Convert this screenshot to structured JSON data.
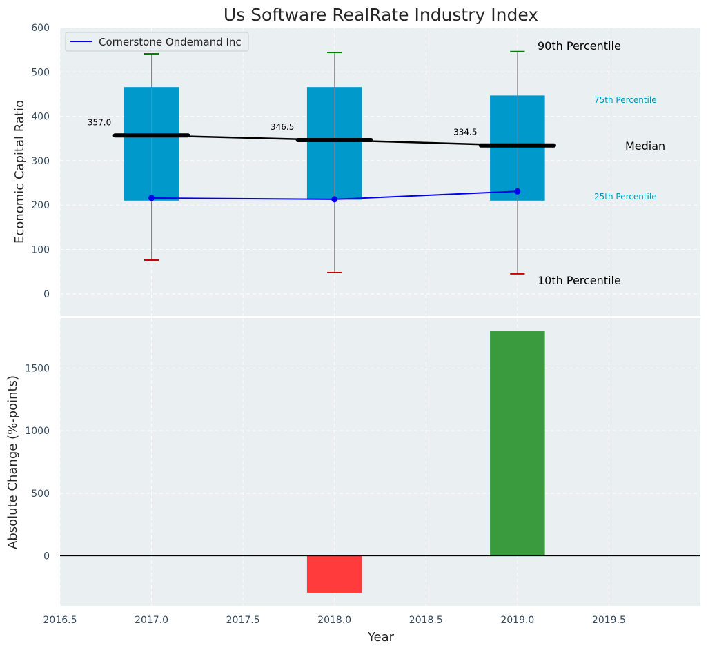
{
  "chart_data": [
    {
      "type": "box",
      "title": "Us Software RealRate Industry Index",
      "xlabel": "",
      "ylabel": "Economic Capital Ratio",
      "xlim": [
        2016.5,
        2020.0
      ],
      "ylim": [
        -50,
        600
      ],
      "yticks": [
        0,
        100,
        200,
        300,
        400,
        500,
        600
      ],
      "grid": true,
      "legend": {
        "position": "top-left",
        "entries": [
          "Cornerstone Ondemand Inc"
        ]
      },
      "colors": {
        "box": "#0099cc",
        "median": "#000000",
        "company": "#0000ee",
        "p90_cap": "#008000",
        "p10_cap": "#cc0000",
        "whisker": "#808080",
        "background": "#eaeff1",
        "percentile_label": "#0099bb"
      },
      "years": [
        2017,
        2018,
        2019
      ],
      "p10": [
        76,
        48,
        45
      ],
      "p25": [
        210,
        212,
        210
      ],
      "median": [
        357.0,
        346.5,
        334.5
      ],
      "p75": [
        466,
        466,
        447
      ],
      "p90": [
        541,
        544,
        546
      ],
      "median_labels": [
        "357.0",
        "346.5",
        "334.5"
      ],
      "series": [
        {
          "name": "Cornerstone Ondemand Inc",
          "values": [
            216,
            213,
            231
          ]
        }
      ],
      "annotations": {
        "p90": "90th Percentile",
        "p75": "75th Percentile",
        "median": "Median",
        "p25": "25th Percentile",
        "p10": "10th Percentile"
      }
    },
    {
      "type": "bar",
      "xlabel": "Year",
      "ylabel": "Absolute Change (%-points)",
      "xlim": [
        2016.5,
        2020.0
      ],
      "ylim": [
        -400,
        1900
      ],
      "yticks": [
        0,
        500,
        1000,
        1500
      ],
      "xticks": [
        "2016.5",
        "2017.0",
        "2017.5",
        "2018.0",
        "2018.5",
        "2019.0",
        "2019.5"
      ],
      "grid": true,
      "categories": [
        2018,
        2019
      ],
      "values": [
        -295,
        1795
      ],
      "colors": {
        "negative": "#ff3b3b",
        "positive": "#3a9a3e"
      }
    }
  ]
}
